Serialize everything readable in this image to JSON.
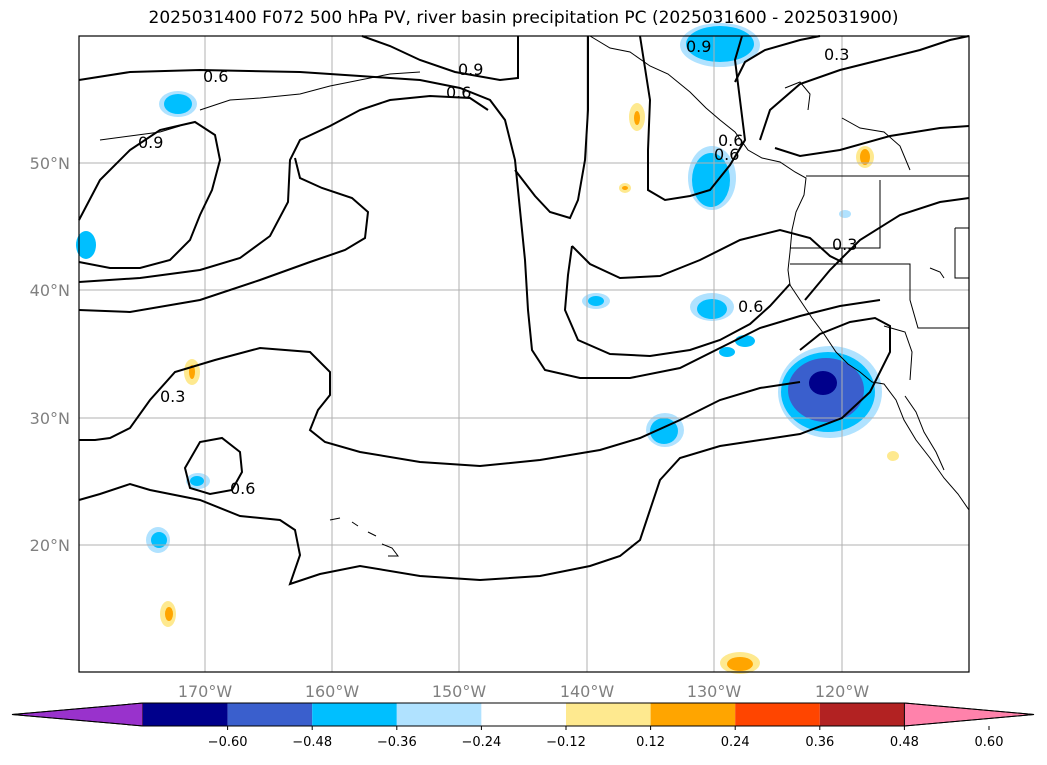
{
  "title": "2025031400 F072 500 hPa PV, river basin precipitation PC (2025031600 - 2025031900)",
  "map": {
    "lon_labels": [
      "170°W",
      "160°W",
      "150°W",
      "140°W",
      "130°W",
      "120°W"
    ],
    "lat_labels": [
      "50°N",
      "40°N",
      "30°N",
      "20°N"
    ],
    "contour_labels": [
      "0.6",
      "0.9",
      "0.6",
      "0.9",
      "0.6",
      "0.3",
      "0.3",
      "0.6",
      "0.6",
      "0.9",
      "0.3",
      "0.6"
    ],
    "contour_color": "#000000",
    "grid_color": "#b0b0b0",
    "coast_color": "#000000"
  },
  "colorbar": {
    "ticks": [
      "−0.60",
      "−0.48",
      "−0.36",
      "−0.24",
      "−0.12",
      "0.12",
      "0.24",
      "0.36",
      "0.48",
      "0.60"
    ],
    "colors": [
      "#9932cc",
      "#00008b",
      "#3a5fcd",
      "#00bfff",
      "#b0e2ff",
      "#ffffff",
      "#fee98f",
      "#ffa500",
      "#ff4500",
      "#b22222",
      "#ff82ab"
    ]
  }
}
